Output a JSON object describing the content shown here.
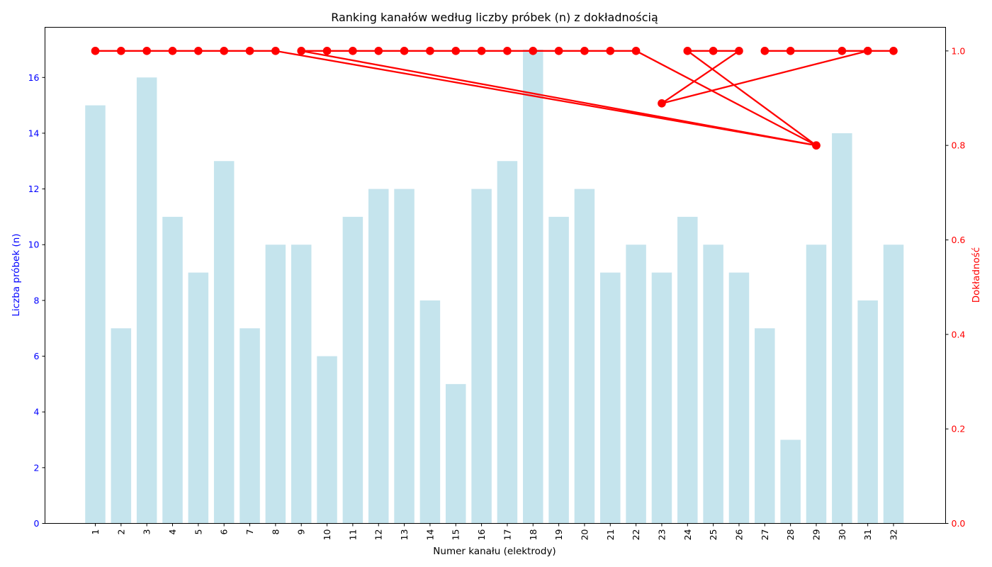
{
  "chart_data": {
    "type": "bar",
    "title": "Ranking kanałów według liczby próbek (n) z dokładnością",
    "xlabel": "Numer kanału (elektrody)",
    "ylabel": "Liczba próbek (n)",
    "y2label": "Dokładność",
    "categories": [
      "1",
      "2",
      "3",
      "4",
      "5",
      "6",
      "7",
      "8",
      "9",
      "10",
      "11",
      "12",
      "13",
      "14",
      "15",
      "16",
      "17",
      "18",
      "19",
      "20",
      "21",
      "22",
      "23",
      "24",
      "25",
      "26",
      "27",
      "28",
      "29",
      "30",
      "31",
      "32"
    ],
    "ylim": [
      0,
      17.8
    ],
    "y2lim": [
      0,
      1.05
    ],
    "yticks": [
      0,
      2,
      4,
      6,
      8,
      10,
      12,
      14,
      16
    ],
    "y2ticks": [
      0.0,
      0.2,
      0.4,
      0.6,
      0.8,
      1.0
    ],
    "y2tick_labels": [
      "0.0",
      "0.2",
      "0.4",
      "0.6",
      "0.8",
      "1.0"
    ],
    "grid": false,
    "series": [
      {
        "kind": "bar",
        "axis": "left",
        "color": "#add8e6",
        "values": [
          15,
          7,
          16,
          11,
          9,
          13,
          7,
          10,
          10,
          6,
          11,
          12,
          12,
          8,
          5,
          12,
          13,
          17,
          11,
          12,
          9,
          10,
          9,
          11,
          10,
          9,
          7,
          3,
          10,
          14,
          8,
          10
        ]
      },
      {
        "kind": "line",
        "axis": "right",
        "color": "#ff0000",
        "note_order": "line connects points in data order below",
        "points": [
          {
            "x": "1",
            "y": 1.0
          },
          {
            "x": "2",
            "y": 1.0
          },
          {
            "x": "3",
            "y": 1.0
          },
          {
            "x": "4",
            "y": 1.0
          },
          {
            "x": "5",
            "y": 1.0
          },
          {
            "x": "6",
            "y": 1.0
          },
          {
            "x": "7",
            "y": 1.0
          },
          {
            "x": "8",
            "y": 1.0
          },
          {
            "x": "29",
            "y": 0.8
          },
          {
            "x": "9",
            "y": 1.0
          },
          {
            "x": "10",
            "y": 1.0
          },
          {
            "x": "11",
            "y": 1.0
          },
          {
            "x": "12",
            "y": 1.0
          },
          {
            "x": "13",
            "y": 1.0
          },
          {
            "x": "14",
            "y": 1.0
          },
          {
            "x": "15",
            "y": 1.0
          },
          {
            "x": "16",
            "y": 1.0
          },
          {
            "x": "17",
            "y": 1.0
          },
          {
            "x": "18",
            "y": 1.0
          },
          {
            "x": "19",
            "y": 1.0
          },
          {
            "x": "20",
            "y": 1.0
          },
          {
            "x": "21",
            "y": 1.0
          },
          {
            "x": "22",
            "y": 1.0
          },
          {
            "x": "29",
            "y": 0.8
          },
          {
            "x": "24",
            "y": 1.0
          },
          {
            "x": "25",
            "y": 1.0
          },
          {
            "x": "26",
            "y": 1.0
          },
          {
            "x": "23",
            "y": 0.889
          },
          {
            "x": "31",
            "y": 1.0
          },
          {
            "x": "27",
            "y": 1.0
          },
          {
            "x": "28",
            "y": 1.0
          },
          {
            "x": "30",
            "y": 1.0
          },
          {
            "x": "31",
            "y": 1.0
          },
          {
            "x": "32",
            "y": 1.0
          }
        ]
      }
    ],
    "colors": {
      "left_axis": "#0000ff",
      "right_axis": "#ff0000"
    }
  }
}
